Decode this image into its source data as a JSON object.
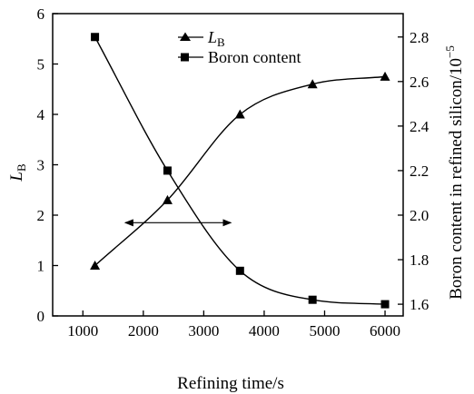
{
  "chart_data": {
    "type": "line",
    "xlabel": "Refining time/s",
    "ylabel_left": "L",
    "ylabel_left_subscript": "B",
    "ylabel_right": "Boron content in refined silicon/10",
    "ylabel_right_exponent": "−5",
    "x_ticks": [
      "1000",
      "2000",
      "3000",
      "4000",
      "5000",
      "6000"
    ],
    "y_left_ticks": [
      "0",
      "1",
      "2",
      "3",
      "4",
      "5",
      "6"
    ],
    "y_right_ticks": [
      "1.6",
      "1.8",
      "2.0",
      "2.2",
      "2.4",
      "2.6",
      "2.8"
    ],
    "xlim": [
      500,
      6300
    ],
    "ylim_left": [
      0,
      6
    ],
    "ylim_right": [
      1.5474,
      2.905
    ],
    "grid": false,
    "legend_position": "top-center",
    "series": [
      {
        "name": "L",
        "name_subscript": "B",
        "axis": "left",
        "marker": "triangle",
        "x": [
          1200,
          2400,
          3600,
          4800,
          6000
        ],
        "y": [
          1.0,
          2.3,
          4.0,
          4.6,
          4.75
        ]
      },
      {
        "name": "Boron content",
        "axis": "right",
        "marker": "square",
        "x": [
          1200,
          2400,
          3600,
          4800,
          6000
        ],
        "y": [
          2.8,
          2.2,
          1.75,
          1.62,
          1.6
        ]
      }
    ],
    "annotation": {
      "type": "double-arrow",
      "y_left": 1.85,
      "x_from": 1700,
      "x_to": 3450
    }
  }
}
